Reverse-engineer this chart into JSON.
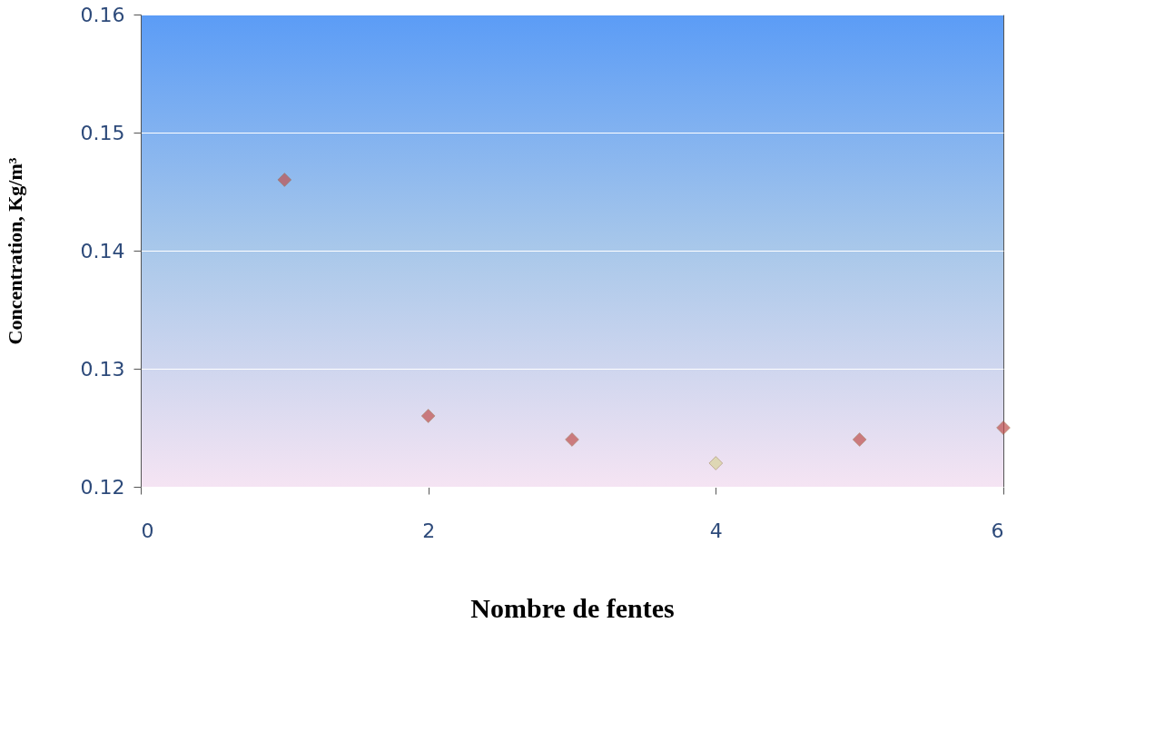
{
  "chart_data": {
    "type": "scatter",
    "xlabel": "Nombre de fentes",
    "ylabel": "Concentration, Kg/m³",
    "x": [
      1,
      2,
      3,
      4,
      5,
      6
    ],
    "values": [
      0.146,
      0.126,
      0.124,
      0.122,
      0.124,
      0.125
    ],
    "colors": [
      "#c0504d",
      "#c0504d",
      "#c0504d",
      "#d8d39a",
      "#c0504d",
      "#c0504d"
    ],
    "xlim": [
      0,
      6
    ],
    "xticks": [
      0,
      2,
      4,
      6
    ],
    "ylim": [
      0.12,
      0.16
    ],
    "yticks": [
      0.12,
      0.13,
      0.14,
      0.15,
      0.16
    ],
    "grid": "y",
    "marker": "diamond",
    "legend": false
  }
}
